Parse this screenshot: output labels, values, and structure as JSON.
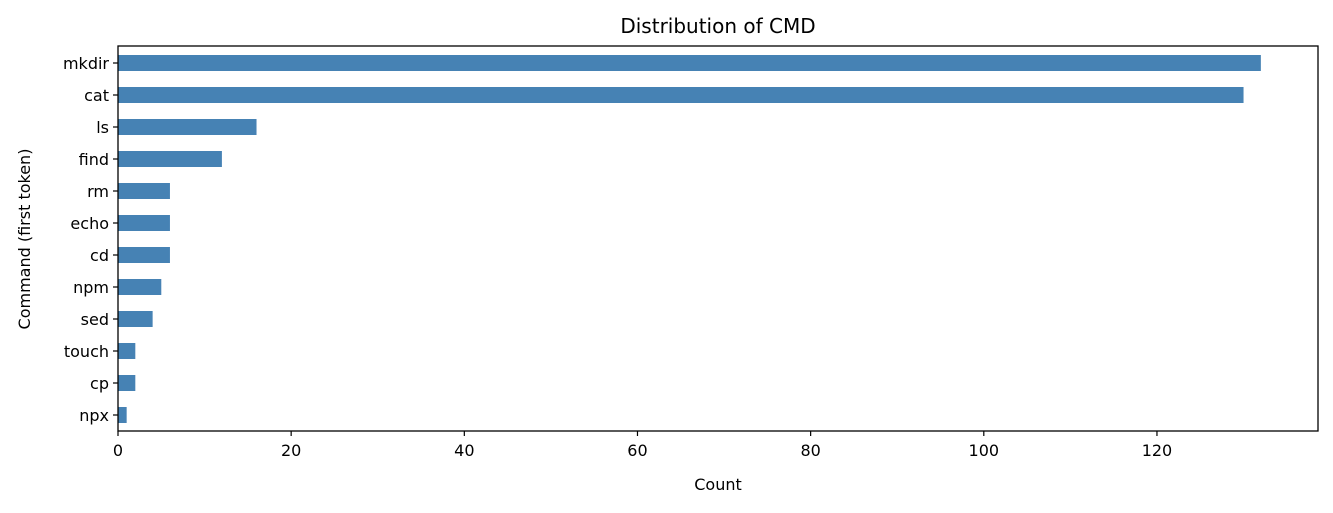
{
  "chart_data": {
    "type": "bar",
    "orientation": "horizontal",
    "title": "Distribution of CMD",
    "xlabel": "Count",
    "ylabel": "Command (first token)",
    "categories": [
      "mkdir",
      "cat",
      "ls",
      "find",
      "rm",
      "echo",
      "cd",
      "npm",
      "sed",
      "touch",
      "cp",
      "npx"
    ],
    "values": [
      132,
      130,
      16,
      12,
      6,
      6,
      6,
      5,
      4,
      2,
      2,
      1
    ],
    "xlim": [
      0,
      138.6
    ],
    "xticks": [
      0,
      20,
      40,
      60,
      80,
      100,
      120
    ],
    "grid": false,
    "legend": "none",
    "bar_color": "#4682b4"
  }
}
